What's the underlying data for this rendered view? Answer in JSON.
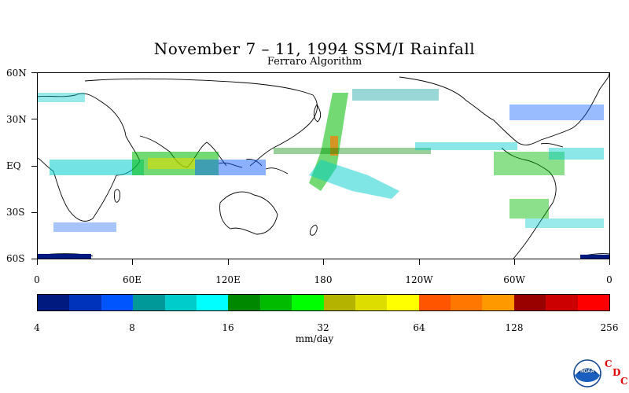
{
  "title": "November 7 – 11, 1994 SSM/I Rainfall",
  "subtitle": "Ferraro Algorithm",
  "lat_labels": [
    "60N",
    "30N",
    "EQ",
    "30S",
    "60S"
  ],
  "lon_labels": [
    "0",
    "60E",
    "120E",
    "180",
    "120W",
    "60W",
    "0"
  ],
  "colorbar": {
    "colors": [
      "#001a80",
      "#0033bb",
      "#0055ff",
      "#009999",
      "#00cccc",
      "#00ffff",
      "#008800",
      "#00bb00",
      "#00ff00",
      "#b3b300",
      "#dddd00",
      "#ffff00",
      "#ff5500",
      "#ff7700",
      "#ff9900",
      "#990000",
      "#cc0000",
      "#ff0000"
    ],
    "labels": [
      "4",
      "8",
      "16",
      "32",
      "64",
      "128",
      "256"
    ],
    "units": "mm/day"
  },
  "logo": {
    "text": "NOAA",
    "cdc": [
      "C",
      "D",
      "C"
    ]
  }
}
